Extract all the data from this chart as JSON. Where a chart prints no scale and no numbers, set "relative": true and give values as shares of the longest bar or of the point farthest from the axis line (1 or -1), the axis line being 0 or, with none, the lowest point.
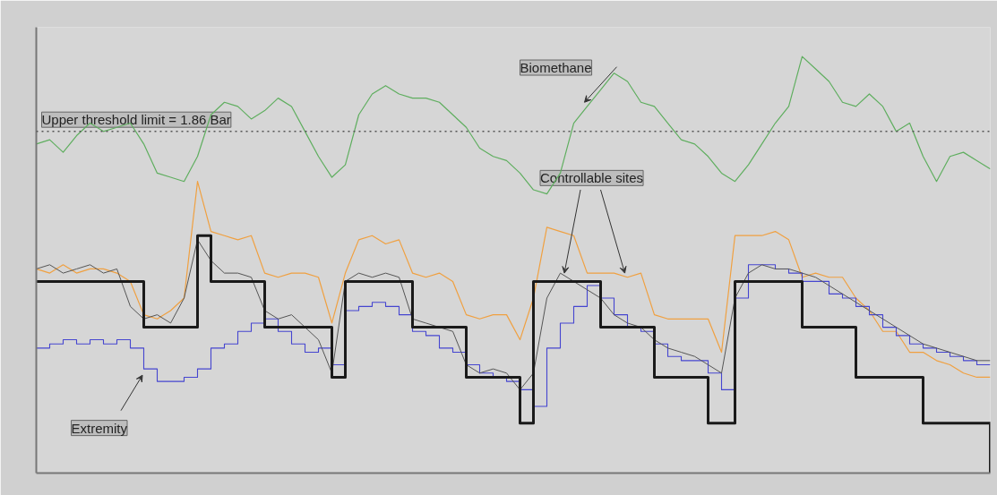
{
  "chart_data": {
    "type": "line",
    "relative": true,
    "marker": "none",
    "line_style": "solid",
    "categories": [
      null,
      null,
      null,
      null,
      null,
      null,
      null,
      null,
      null,
      null,
      null,
      null,
      null,
      null,
      null,
      null,
      null,
      null,
      null,
      null,
      null,
      null,
      null,
      null,
      null,
      null,
      null,
      null,
      null,
      null,
      null,
      null,
      null,
      null,
      null,
      null,
      null,
      null,
      null,
      null,
      null,
      null,
      null,
      null,
      null,
      null,
      null,
      null,
      null,
      null,
      null,
      null,
      null,
      null,
      null,
      null,
      null,
      null,
      null,
      null,
      null,
      null,
      null,
      null,
      null,
      null,
      null,
      null,
      null,
      null,
      null,
      null
    ],
    "series": [
      {
        "color": "#5fae5f",
        "values": [
          0.79,
          0.8,
          0.77,
          0.81,
          0.84,
          0.82,
          0.83,
          0.84,
          0.79,
          0.72,
          0.71,
          0.7,
          0.76,
          0.86,
          0.89,
          0.88,
          0.85,
          0.87,
          0.9,
          0.88,
          0.82,
          0.76,
          0.71,
          0.74,
          0.86,
          0.91,
          0.93,
          0.91,
          0.9,
          0.9,
          0.89,
          0.86,
          0.83,
          0.78,
          0.76,
          0.75,
          0.72,
          0.68,
          0.67,
          0.72,
          0.84,
          0.88,
          0.92,
          0.96,
          0.94,
          0.89,
          0.88,
          0.84,
          0.8,
          0.79,
          0.76,
          0.72,
          0.7,
          0.74,
          0.79,
          0.84,
          0.88,
          1.0,
          0.97,
          0.94,
          0.89,
          0.88,
          0.91,
          0.88,
          0.82,
          0.84,
          0.76,
          0.7,
          0.76,
          0.77,
          0.75,
          0.73
        ]
      },
      {
        "color": "#f0a040",
        "values": [
          0.49,
          0.48,
          0.5,
          0.48,
          0.49,
          0.49,
          0.48,
          0.46,
          0.38,
          0.37,
          0.39,
          0.42,
          0.7,
          0.58,
          0.57,
          0.56,
          0.57,
          0.48,
          0.47,
          0.48,
          0.48,
          0.47,
          0.36,
          0.48,
          0.56,
          0.57,
          0.55,
          0.56,
          0.48,
          0.47,
          0.48,
          0.46,
          0.38,
          0.37,
          0.38,
          0.38,
          0.32,
          0.42,
          0.59,
          0.58,
          0.57,
          0.48,
          0.48,
          0.48,
          0.47,
          0.48,
          0.38,
          0.37,
          0.37,
          0.37,
          0.37,
          0.29,
          0.57,
          0.57,
          0.57,
          0.58,
          0.56,
          0.47,
          0.48,
          0.47,
          0.47,
          0.42,
          0.39,
          0.34,
          0.34,
          0.29,
          0.29,
          0.27,
          0.26,
          0.24,
          0.23,
          0.23
        ]
      },
      {
        "type": "step",
        "color": "#4545d0",
        "values": [
          0.3,
          0.31,
          0.32,
          0.31,
          0.32,
          0.31,
          0.32,
          0.3,
          0.25,
          0.22,
          0.22,
          0.23,
          0.25,
          0.3,
          0.31,
          0.34,
          0.36,
          0.37,
          0.34,
          0.31,
          0.29,
          0.3,
          0.26,
          0.39,
          0.4,
          0.41,
          0.4,
          0.38,
          0.34,
          0.33,
          0.3,
          0.29,
          0.26,
          0.24,
          0.23,
          0.22,
          0.2,
          0.16,
          0.3,
          0.36,
          0.4,
          0.45,
          0.42,
          0.38,
          0.35,
          0.34,
          0.31,
          0.28,
          0.27,
          0.27,
          0.24,
          0.2,
          0.42,
          0.5,
          0.5,
          0.49,
          0.48,
          0.46,
          0.46,
          0.43,
          0.42,
          0.4,
          0.38,
          0.35,
          0.33,
          0.31,
          0.3,
          0.29,
          0.28,
          0.27,
          0.26,
          0.26
        ]
      },
      {
        "color": "#555555",
        "values": [
          0.49,
          0.5,
          0.48,
          0.49,
          0.5,
          0.48,
          0.49,
          0.4,
          0.37,
          0.38,
          0.36,
          0.42,
          0.56,
          0.51,
          0.48,
          0.48,
          0.47,
          0.39,
          0.37,
          0.38,
          0.35,
          0.32,
          0.24,
          0.46,
          0.48,
          0.47,
          0.48,
          0.47,
          0.37,
          0.36,
          0.35,
          0.34,
          0.26,
          0.24,
          0.25,
          0.24,
          0.2,
          0.24,
          0.42,
          0.48,
          0.46,
          0.44,
          0.42,
          0.38,
          0.36,
          0.35,
          0.32,
          0.3,
          0.29,
          0.28,
          0.26,
          0.24,
          0.42,
          0.48,
          0.5,
          0.49,
          0.49,
          0.48,
          0.47,
          0.45,
          0.43,
          0.41,
          0.39,
          0.37,
          0.35,
          0.33,
          0.31,
          0.3,
          0.29,
          0.28,
          0.27,
          0.27
        ]
      },
      {
        "type": "step",
        "color": "#1a1a1a",
        "values": [
          0.46,
          0.46,
          0.46,
          0.46,
          0.46,
          0.46,
          0.46,
          0.46,
          0.35,
          0.35,
          0.35,
          0.35,
          0.57,
          0.46,
          0.46,
          0.46,
          0.46,
          0.35,
          0.35,
          0.35,
          0.35,
          0.35,
          0.23,
          0.46,
          0.46,
          0.46,
          0.46,
          0.46,
          0.35,
          0.35,
          0.35,
          0.35,
          0.23,
          0.23,
          0.23,
          0.23,
          0.12,
          0.46,
          0.46,
          0.46,
          0.46,
          0.46,
          0.35,
          0.35,
          0.35,
          0.35,
          0.23,
          0.23,
          0.23,
          0.23,
          0.12,
          0.12,
          0.46,
          0.46,
          0.46,
          0.46,
          0.46,
          0.35,
          0.35,
          0.35,
          0.35,
          0.23,
          0.23,
          0.23,
          0.23,
          0.23,
          0.12,
          0.12,
          0.12,
          0.12,
          0.12,
          0
        ]
      }
    ],
    "ref_lines": [
      {
        "axis": "y",
        "value": 0.82,
        "line_style": "dotted",
        "color": "#555555"
      }
    ],
    "annotations": [
      "Upper threshold limit = 1.86 Bar",
      "Biomethane",
      "Controllable sites",
      "Extremity"
    ]
  }
}
